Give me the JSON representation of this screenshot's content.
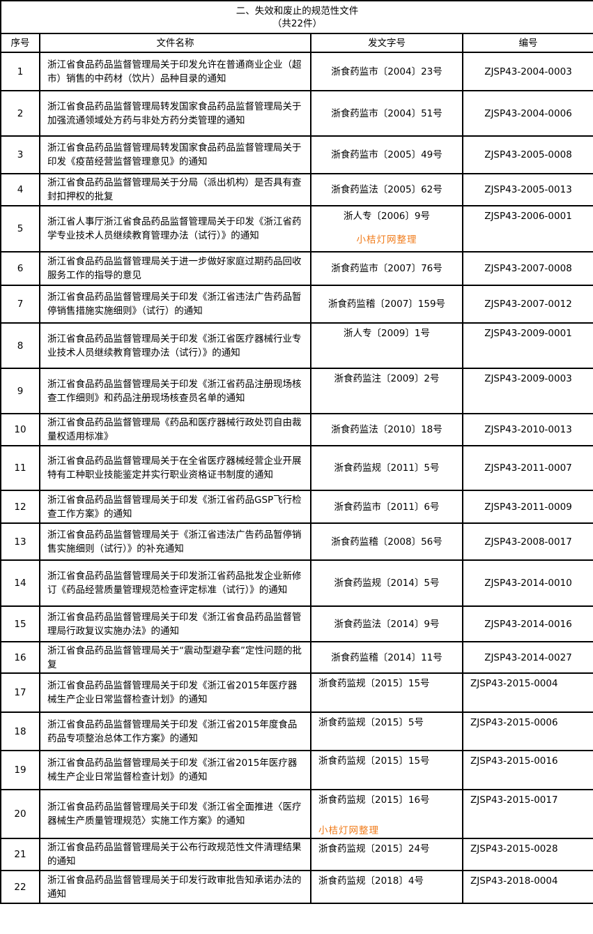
{
  "title": "二、失效和废止的规范性文件",
  "subtitle": "（共22件）",
  "headers": [
    "序号",
    "文件名称",
    "发文字号",
    "编号"
  ],
  "watermark": "小桔灯网整理",
  "watermark_color": "#f07b1a",
  "rows": [
    {
      "no": "1",
      "name": "浙江省食品药品监督管理局关于印发允许在普通商业企业（超市）销售的中药材（饮片）品种目录的通知",
      "doc": "浙食药监市〔2004〕23号",
      "code": "ZJSP43-2004-0003"
    },
    {
      "no": "2",
      "name": "浙江省食品药品监督管理局转发国家食品药品监督管理局关于加强流通领域处方药与非处方药分类管理的通知",
      "doc": "浙食药监市〔2004〕51号",
      "code": "ZJSP43-2004-0006"
    },
    {
      "no": "3",
      "name": "浙江省食品药品监督管理局转发国家食品药品监督管理局关于印发《疫苗经营监督管理意见》的通知",
      "doc": "浙食药监市〔2005〕49号",
      "code": "ZJSP43-2005-0008"
    },
    {
      "no": "4",
      "name": "浙江省食品药品监督管理局关于分局（派出机构）是否具有查封扣押权的批复",
      "doc": "浙食药监法〔2005〕62号",
      "code": "ZJSP43-2005-0013"
    },
    {
      "no": "5",
      "name": "浙江省人事厅浙江省食品药品监督管理局关于印发《浙江省药学专业技术人员继续教育管理办法（试行）》的通知",
      "doc": "浙人专〔2006〕9号",
      "code": "ZJSP43-2006-0001",
      "watermark": true
    },
    {
      "no": "6",
      "name": "浙江省食品药品监督管理局关于进一步做好家庭过期药品回收服务工作的指导的意见",
      "doc": "浙食药监市〔2007〕76号",
      "code": "ZJSP43-2007-0008"
    },
    {
      "no": "7",
      "name": "浙江省食品药品监督管理局关于印发《浙江省违法广告药品暂停销售措施实施细则》（试行）的通知",
      "doc": "浙食药监稽〔2007〕159号",
      "code": "ZJSP43-2007-0012"
    },
    {
      "no": "8",
      "name": "浙江省食品药品监督管理局关于印发《浙江省医疗器械行业专业技术人员继续教育管理办法（试行）》的通知",
      "doc": "浙人专〔2009〕1号",
      "code": "ZJSP43-2009-0001"
    },
    {
      "no": "9",
      "name": "浙江省食品药品监督管理局关于印发《浙江省药品注册现场核查工作细则》和药品注册现场核查员名单的通知",
      "doc": "浙食药监注〔2009〕2号",
      "code": "ZJSP43-2009-0003"
    },
    {
      "no": "10",
      "name": "浙江省食品药品监督管理局《药品和医疗器械行政处罚自由裁量权适用标准》",
      "doc": "浙食药监法〔2010〕18号",
      "code": "ZJSP43-2010-0013"
    },
    {
      "no": "11",
      "name": "浙江省食品药品监督管理局关于在全省医疗器械经营企业开展特有工种职业技能鉴定并实行职业资格证书制度的通知",
      "doc": "浙食药监规〔2011〕5号",
      "code": "ZJSP43-2011-0007"
    },
    {
      "no": "12",
      "name": "浙江省食品药品监督管理局关于印发《浙江省药品GSP飞行检查工作方案》的通知",
      "doc": "浙食药监市〔2011〕6号",
      "code": "ZJSP43-2011-0009"
    },
    {
      "no": "13",
      "name": "浙江省食品药品监督管理局关于《浙江省违法广告药品暂停销售实施细则（试行）》的补充通知",
      "doc": "浙食药监稽〔2008〕56号",
      "code": "ZJSP43-2008-0017"
    },
    {
      "no": "14",
      "name": "浙江省食品药品监督管理局关于印发浙江省药品批发企业新修订《药品经营质量管理规范检查评定标准（试行）》的通知",
      "doc": "浙食药监规〔2014〕5号",
      "code": "ZJSP43-2014-0010"
    },
    {
      "no": "15",
      "name": "浙江省食品药品监督管理局关于印发《浙江省食品药品监督管理局行政复议实施办法》的通知",
      "doc": "浙食药监法〔2014〕9号",
      "code": "ZJSP43-2014-0016"
    },
    {
      "no": "16",
      "name": "浙江省食品药品监督管理局关于“震动型避孕套”定性问题的批复",
      "doc": "浙食药监稽〔2014〕11号",
      "code": "ZJSP43-2014-0027"
    },
    {
      "no": "17",
      "name": "浙江省食品药品监督管理局关于印发《浙江省2015年医疗器械生产企业日常监督检查计划》的通知",
      "doc": "浙食药监规〔2015〕15号",
      "code": "ZJSP43-2015-0004"
    },
    {
      "no": "18",
      "name": "浙江省食品药品监督管理局关于印发《浙江省2015年度食品药品专项整治总体工作方案》的通知",
      "doc": "浙食药监规〔2015〕5号",
      "code": "ZJSP43-2015-0006"
    },
    {
      "no": "19",
      "name": "浙江省食品药品监督管理局关于印发《浙江省2015年医疗器械生产企业日常监督检查计划》的通知",
      "doc": "浙食药监规〔2015〕15号",
      "code": "ZJSP43-2015-0016"
    },
    {
      "no": "20",
      "name": "浙江省食品药品监督管理局关于印发《浙江省全面推进〈医疗器械生产质量管理规范〉实施工作方案》的通知",
      "doc": "浙食药监规〔2015〕16号",
      "code": "ZJSP43-2015-0017",
      "watermark": true
    },
    {
      "no": "21",
      "name": "浙江省食品药品监督管理局关于公布行政规范性文件清理结果的通知",
      "doc": "浙食药监规〔2015〕24号",
      "code": "ZJSP43-2015-0028"
    },
    {
      "no": "22",
      "name": "浙江省食品药品监督管理局关于印发行政审批告知承诺办法的通知",
      "doc": "浙食药监规〔2018〕4号",
      "code": "ZJSP43-2018-0004"
    }
  ]
}
